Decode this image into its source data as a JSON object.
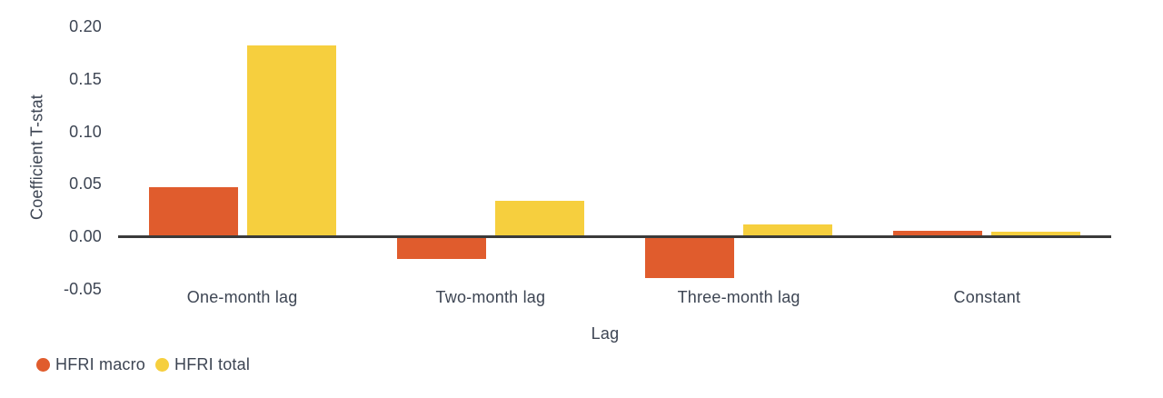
{
  "chart_data": {
    "type": "bar",
    "title": "",
    "xlabel": "Lag",
    "ylabel": "Coefficient T-stat",
    "categories": [
      "One-month lag",
      "Two-month lag",
      "Three-month lag",
      "Constant"
    ],
    "series": [
      {
        "name": "HFRI macro",
        "color": "#E05C2D",
        "values": [
          0.047,
          -0.02,
          -0.038,
          0.005
        ]
      },
      {
        "name": "HFRI total",
        "color": "#F6CF3E",
        "values": [
          0.182,
          0.034,
          0.011,
          0.004
        ]
      }
    ],
    "y_ticks": [
      {
        "label": "0.20",
        "value": 0.2
      },
      {
        "label": "0.15",
        "value": 0.15
      },
      {
        "label": "0.10",
        "value": 0.1
      },
      {
        "label": "0.05",
        "value": 0.05
      },
      {
        "label": "0.00",
        "value": 0.0
      },
      {
        "label": "-0.05",
        "value": -0.05
      }
    ],
    "ylim": [
      -0.05,
      0.2
    ],
    "grid": false,
    "legend_position": "bottom-left",
    "colors": {
      "axis_line": "#3A3A3A",
      "text": "#3D4553",
      "background": "#FFFFFF"
    }
  }
}
